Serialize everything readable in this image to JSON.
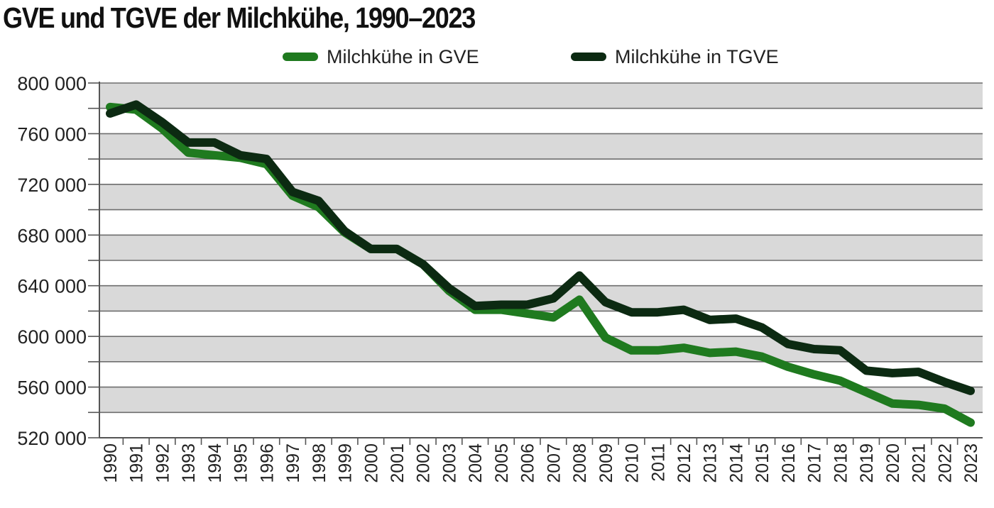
{
  "chart_data": {
    "type": "line",
    "title": "GVE und TGVE der Milchkühe, 1990–2023",
    "xlabel": "",
    "ylabel": "",
    "ylim": [
      520000,
      800000
    ],
    "yticks": [
      520000,
      560000,
      600000,
      640000,
      680000,
      720000,
      760000,
      800000
    ],
    "ytick_labels": [
      "520 000",
      "560 000",
      "600 000",
      "640 000",
      "680 000",
      "720 000",
      "760 000",
      "800 000"
    ],
    "grid": true,
    "legend_position": "top",
    "categories": [
      "1990",
      "1991",
      "1992",
      "1993",
      "1994",
      "1995",
      "1996",
      "1997",
      "1998",
      "1999",
      "2000",
      "2001",
      "2002",
      "2003",
      "2004",
      "2005",
      "2006",
      "2007",
      "2008",
      "2009",
      "2010",
      "2011",
      "2012",
      "2013",
      "2014",
      "2015",
      "2016",
      "2017",
      "2018",
      "2019",
      "2020",
      "2021",
      "2022",
      "2023"
    ],
    "series": [
      {
        "name": "Milchkühe in GVE",
        "color": "#1f7a1f",
        "values": [
          781000,
          779000,
          764000,
          745000,
          743000,
          741000,
          736000,
          711000,
          702000,
          682000,
          669000,
          669000,
          657000,
          636000,
          621000,
          621000,
          618000,
          615000,
          629000,
          599000,
          589000,
          589000,
          591000,
          587000,
          588000,
          584000,
          576000,
          570000,
          565000,
          556000,
          547000,
          546000,
          543000,
          532000
        ]
      },
      {
        "name": "Milchkühe in TGVE",
        "color": "#0c2a12",
        "values": [
          776000,
          783000,
          769000,
          753000,
          753000,
          743000,
          740000,
          714000,
          707000,
          683000,
          669000,
          669000,
          657000,
          638000,
          624000,
          625000,
          625000,
          630000,
          648000,
          627000,
          619000,
          619000,
          621000,
          613000,
          614000,
          607000,
          594000,
          590000,
          589000,
          573000,
          571000,
          572000,
          564000,
          557000
        ]
      }
    ]
  }
}
